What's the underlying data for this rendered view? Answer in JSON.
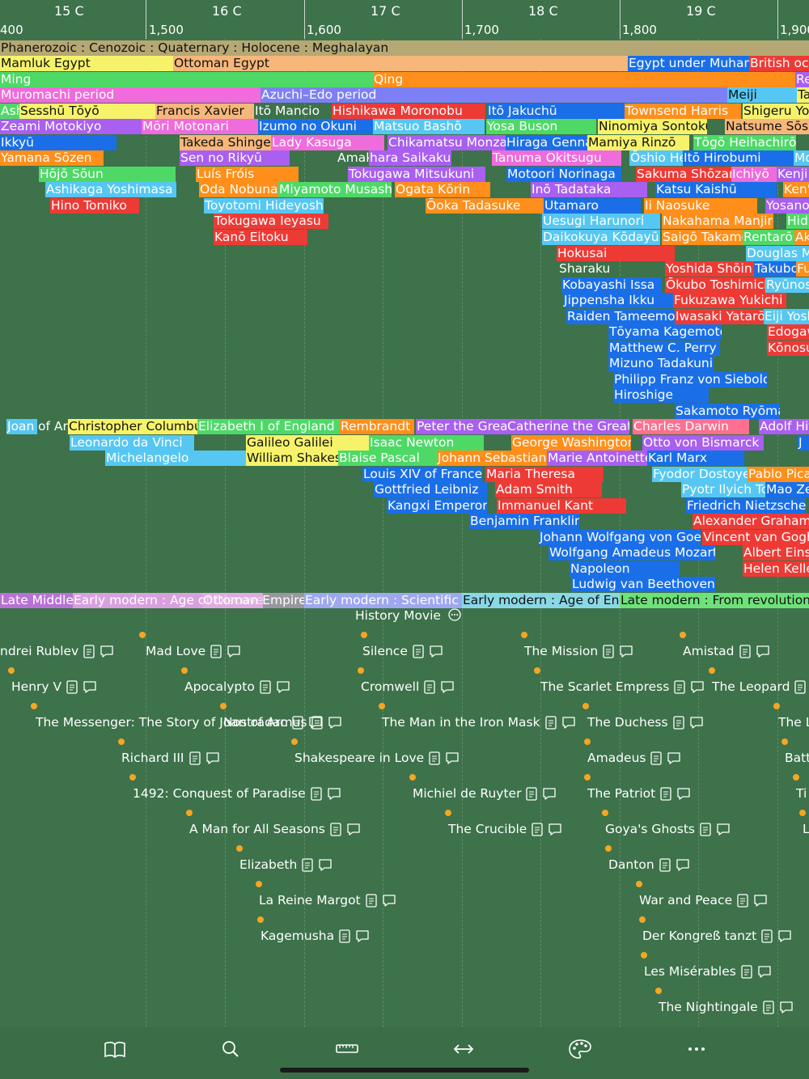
{
  "ruler": {
    "centuries": [
      "15 C",
      "16 C",
      "17 C",
      "18 C",
      "19 C"
    ],
    "years": [
      "400",
      "1,500",
      "1,600",
      "1,700",
      "1,800",
      "1,900"
    ]
  },
  "eras": {
    "geologic": "Phanerozoic : Cenozoic : Quaternary : Holocene : Meghalayan",
    "egypt": [
      "Mamluk Egypt",
      "Ottoman Egypt",
      "Egypt under Muham",
      "British occ"
    ],
    "china": [
      "Ming",
      "Qing",
      "Re"
    ],
    "japan": [
      "Muromachi period",
      "Azuchi–Edo period",
      "Meiji",
      "Ta"
    ]
  },
  "people_japan": [
    "Ash",
    "Sesshū Tōyō",
    "Francis Xavier",
    "Itō Mancio",
    "Hishikawa Moronobu",
    "Itō Jakuchū",
    "Townsend Harris",
    "Shigeru Yo",
    "Zeami Motokiyo",
    "Mōri Motonari",
    "Izumo no Okuni",
    "Matsuo Bashō",
    "Yosa Buson",
    "Ninomiya Sontoku",
    "Natsume Sōs",
    "Ikkyū",
    "Takeda Shingen",
    "Lady Kasuga",
    "Chikamatsu Monzae",
    "Hiraga Genna",
    "Mamiya Rinzō",
    "Tōgō Heihachirō",
    "Yamana Sōzen",
    "Sen no Rikyū",
    "Amakusa",
    "hara Saikaku",
    "Tanuma Okitsugu",
    "Ōshio Heihac",
    "Itō Hirobumi",
    "Mo",
    "Hōjō Sōun",
    "Luís Fróis",
    "Tokugawa Mitsukuni",
    "Motoori Norinaga",
    "Sakuma Shōzan",
    "Ichiyō",
    "Kenji M",
    "Ashikaga Yoshimasa",
    "Oda Nobunaga",
    "Miyamoto Musashi",
    "Ogata Kōrin",
    "Inō Tadataka",
    "Katsu Kaishū",
    "Ken'",
    "Hino Tomiko",
    "Toyotomi Hideyoshi",
    "Ōoka Tadasuke",
    "Utamaro",
    "Ii Naosuke",
    "Yosano Aki",
    "Tokugawa Ieyasu",
    "Uesugi Harunori",
    "Nakahama Manjirō",
    "Hid",
    "Kanō Eitoku",
    "Daikokuya Kōdayū",
    "Saigō Takamori",
    "Rentarō",
    "Ak",
    "Hokusai",
    "Douglas M",
    "Sharaku",
    "Yoshida Shōin",
    "Takubo",
    "Fu",
    "Kobayashi Issa",
    "Ōkubo Toshimichi",
    "Ryūnos",
    "Jippensha Ikku",
    "Fukuzawa Yukichi",
    "Raiden Tameemon",
    "Iwasaki Yatarō",
    "Eiji Yosh",
    "Tōyama Kagemoto",
    "Edogaw",
    "Matthew C. Perry",
    "Kōnosu",
    "Mizuno Tadakuni",
    "Philipp Franz von Siebold",
    "Hiroshige",
    "Sakamoto Ryōma"
  ],
  "people_world": [
    "Joan",
    "of Arc",
    "Christopher Columbus",
    "Elizabeth I of England",
    "Rembrandt",
    "Peter the Great",
    "Catherine the Great",
    "Charles Darwin",
    "Adolf Hit",
    "Leonardo da Vinci",
    "Galileo Galilei",
    "Isaac Newton",
    "George Washington",
    "Otto von Bismarck",
    "J",
    "Michelangelo",
    "William Shakespeare",
    "Blaise Pascal",
    "Johann Sebastian",
    "Marie Antoinette",
    "Karl Marx",
    "Louis XIV of France",
    "Maria Theresa",
    "Fyodor Dostoyevsky",
    "Pablo Pica",
    "Gottfried Leibniz",
    "Adam Smith",
    "Pyotr Ilyich Tc",
    "Mao Ze",
    "Kangxi Emperor",
    "Immanuel Kant",
    "Friedrich Nietzsche",
    "Benjamin Franklin",
    "Alexander Graham",
    "Johann Wolfgang von Goethe",
    "Vincent van Gogh",
    "Wolfgang Amadeus Mozart",
    "Albert Eins",
    "Napoleon",
    "Helen Kelle",
    "Ludwig van Beethoven"
  ],
  "periods": [
    "Late Middle Ages",
    "Early modern : Age of Discovery",
    "Ottoman Empire",
    "Early modern : Scientific R",
    "Early modern : Age of Enlig",
    "Late modern : From revolution to"
  ],
  "movies": {
    "title": "History Movie",
    "items": [
      "ndrei Rublev",
      "Mad Love",
      "Silence",
      "The Mission",
      "Amistad",
      "Henry V",
      "Apocalypto",
      "Cromwell",
      "The Scarlet Empress",
      "The Leopard",
      "The Messenger: The Story of Joan of Arc",
      "Nostradamus",
      "The Man in the Iron Mask",
      "The Duchess",
      "The L",
      "Richard III",
      "Shakespeare in Love",
      "Amadeus",
      "Batt",
      "1492: Conquest of Paradise",
      "Michiel de Ruyter",
      "The Patriot",
      "Ti",
      "A Man for All Seasons",
      "The Crucible",
      "Goya's Ghosts",
      "L",
      "Elizabeth",
      "Danton",
      "La Reine Margot",
      "War and Peace",
      "Kagemusha",
      "Der Kongreß tanzt",
      "Les Misérables",
      "The Nightingale"
    ]
  },
  "toolbar": [
    "book-icon",
    "search-icon",
    "ruler-icon",
    "arrows-horizontal-icon",
    "palette-icon",
    "more-icon"
  ]
}
